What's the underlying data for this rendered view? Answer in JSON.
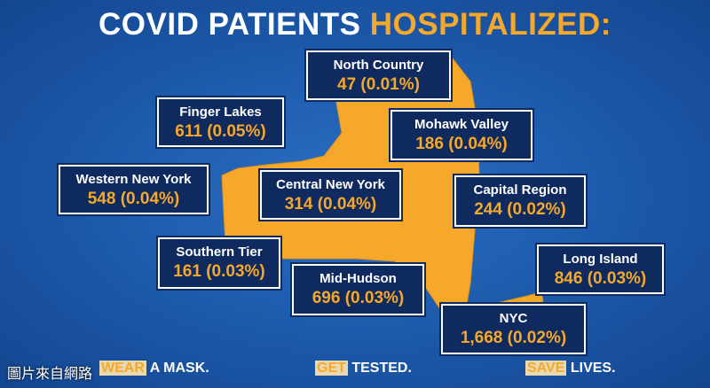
{
  "header": {
    "title_white": "COVID PATIENTS",
    "title_orange": "HOSPITALIZED:"
  },
  "regions": [
    {
      "name": "North Country",
      "value": "47 (0.01%)"
    },
    {
      "name": "Finger Lakes",
      "value": "611 (0.05%)"
    },
    {
      "name": "Mohawk Valley",
      "value": "186 (0.04%)"
    },
    {
      "name": "Western New York",
      "value": "548 (0.04%)"
    },
    {
      "name": "Central New York",
      "value": "314 (0.04%)"
    },
    {
      "name": "Capital Region",
      "value": "244 (0.02%)"
    },
    {
      "name": "Southern Tier",
      "value": "161 (0.03%)"
    },
    {
      "name": "Long Island",
      "value": "846 (0.03%)"
    },
    {
      "name": "Mid-Hudson",
      "value": "696 (0.03%)"
    },
    {
      "name": "NYC",
      "value": "1,668 (0.02%)"
    }
  ],
  "footer": [
    {
      "highlight": "WEAR",
      "text": "A MASK."
    },
    {
      "highlight": "GET",
      "text": "TESTED."
    },
    {
      "highlight": "SAVE",
      "text": "LIVES."
    }
  ],
  "watermark": "圖片來自網路"
}
